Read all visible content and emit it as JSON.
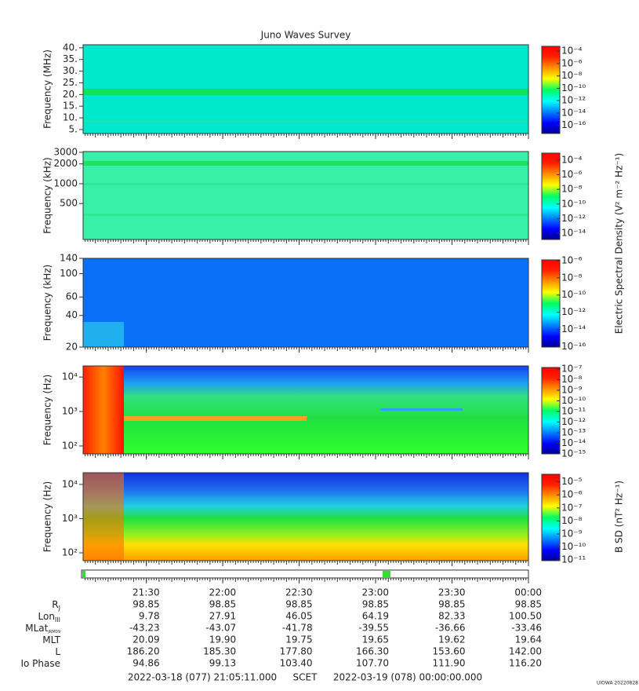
{
  "title": "Juno Waves Survey",
  "chart_data": [
    {
      "type": "spectrogram",
      "ylabel": "Frequency (MHz)",
      "log": false,
      "ylim": [
        3.3,
        41.3
      ],
      "yticks": [
        {
          "value": 5,
          "label": "5."
        },
        {
          "value": 10,
          "label": "10."
        },
        {
          "value": 15,
          "label": "15."
        },
        {
          "value": 20,
          "label": "20."
        },
        {
          "value": 25,
          "label": "25."
        },
        {
          "value": 30,
          "label": "30."
        },
        {
          "value": 35,
          "label": "35."
        },
        {
          "value": 40,
          "label": "40."
        }
      ],
      "clim": [
        5e-18,
        0.0006
      ],
      "cticks": [
        {
          "value": 0.0001,
          "label": "10⁻⁴"
        },
        {
          "value": 1e-06,
          "label": "10⁻⁶"
        },
        {
          "value": 1e-08,
          "label": "10⁻⁸"
        },
        {
          "value": 1e-10,
          "label": "10⁻¹⁰"
        },
        {
          "value": 1e-12,
          "label": "10⁻¹²"
        },
        {
          "value": 1e-14,
          "label": "10⁻¹⁴"
        },
        {
          "value": 1e-16,
          "label": "10⁻¹⁶"
        }
      ]
    },
    {
      "type": "spectrogram",
      "ylabel": "Frequency (kHz)",
      "log": true,
      "ylim": [
        142,
        3080
      ],
      "yticks": [
        500,
        1000,
        2000,
        3000
      ],
      "clim": [
        1.4e-15,
        0.0009
      ],
      "cticks": [
        {
          "value": 0.0001,
          "label": "10⁻⁴"
        },
        {
          "value": 1e-06,
          "label": "10⁻⁶"
        },
        {
          "value": 1e-08,
          "label": "10⁻⁸"
        },
        {
          "value": 1e-10,
          "label": "10⁻¹⁰"
        },
        {
          "value": 1e-12,
          "label": "10⁻¹²"
        },
        {
          "value": 1e-14,
          "label": "10⁻¹⁴"
        }
      ],
      "colorbar_label": "Electric Spectral Density (V² m⁻² Hz⁻¹)"
    },
    {
      "type": "spectrogram",
      "ylabel": "Frequency (kHz)",
      "log": true,
      "ylim": [
        20,
        140
      ],
      "yticks": [
        20,
        40,
        60,
        100,
        140
      ],
      "clim": [
        9e-17,
        1.2e-06
      ],
      "cticks": [
        {
          "value": 1e-06,
          "label": "10⁻⁶"
        },
        {
          "value": 1e-08,
          "label": "10⁻⁸"
        },
        {
          "value": 1e-10,
          "label": "10⁻¹⁰"
        },
        {
          "value": 1e-12,
          "label": "10⁻¹²"
        },
        {
          "value": 1e-14,
          "label": "10⁻¹⁴"
        },
        {
          "value": 1e-16,
          "label": "10⁻¹⁶"
        }
      ]
    },
    {
      "type": "spectrogram",
      "ylabel": "Frequency (Hz)",
      "log": true,
      "ylim": [
        59,
        21000
      ],
      "yticks": [
        {
          "value": 100,
          "label": "10²"
        },
        {
          "value": 1000,
          "label": "10³"
        },
        {
          "value": 10000,
          "label": "10⁴"
        }
      ],
      "clim": [
        1e-15,
        1.4e-07
      ],
      "cticks": [
        {
          "value": 1e-07,
          "label": "10⁻⁷"
        },
        {
          "value": 1e-08,
          "label": "10⁻⁸"
        },
        {
          "value": 1e-09,
          "label": "10⁻⁹"
        },
        {
          "value": 1e-10,
          "label": "10⁻¹⁰"
        },
        {
          "value": 1e-11,
          "label": "10⁻¹¹"
        },
        {
          "value": 1e-12,
          "label": "10⁻¹²"
        },
        {
          "value": 1e-13,
          "label": "10⁻¹³"
        },
        {
          "value": 1e-14,
          "label": "10⁻¹⁴"
        },
        {
          "value": 1e-15,
          "label": "10⁻¹⁵"
        }
      ]
    },
    {
      "type": "spectrogram",
      "ylabel": "Frequency (Hz)",
      "log": true,
      "ylim": [
        59,
        22000
      ],
      "yticks": [
        {
          "value": 100,
          "label": "10²"
        },
        {
          "value": 1000,
          "label": "10³"
        },
        {
          "value": 10000,
          "label": "10⁴"
        }
      ],
      "clim": [
        9e-12,
        3.8e-05
      ],
      "cticks": [
        {
          "value": 1e-05,
          "label": "10⁻⁵"
        },
        {
          "value": 1e-06,
          "label": "10⁻⁶"
        },
        {
          "value": 1e-07,
          "label": "10⁻⁷"
        },
        {
          "value": 1e-08,
          "label": "10⁻⁸"
        },
        {
          "value": 1e-09,
          "label": "10⁻⁹"
        },
        {
          "value": 1e-10,
          "label": "10⁻¹⁰"
        },
        {
          "value": 1e-11,
          "label": "10⁻¹¹"
        }
      ],
      "colorbar_label": "B SD (nT² Hz⁻¹)"
    }
  ],
  "time_axis": {
    "xlim": [
      1265.18,
      1440
    ],
    "xticks": [
      {
        "value": 1290,
        "label": "21:30"
      },
      {
        "value": 1320,
        "label": "22:00"
      },
      {
        "value": 1350,
        "label": "22:30"
      },
      {
        "value": 1380,
        "label": "23:00"
      },
      {
        "value": 1410,
        "label": "23:30"
      },
      {
        "value": 1440,
        "label": "00:00"
      }
    ]
  },
  "ephemeris": [
    {
      "label": "R",
      "sub": "J",
      "values": [
        "98.85",
        "98.85",
        "98.85",
        "98.85",
        "98.85",
        "98.85"
      ]
    },
    {
      "label": "Lon",
      "sub": "III",
      "values": [
        "9.78",
        "27.91",
        "46.05",
        "64.19",
        "82.33",
        "100.50"
      ]
    },
    {
      "label": "MLat",
      "sub": "JRM09",
      "values": [
        "-43.23",
        "-43.07",
        "-41.78",
        "-39.55",
        "-36.66",
        "-33.46"
      ]
    },
    {
      "label": "MLT",
      "values": [
        "20.09",
        "19.90",
        "19.75",
        "19.65",
        "19.62",
        "19.64"
      ]
    },
    {
      "label": "L",
      "values": [
        "186.20",
        "185.30",
        "177.80",
        "166.30",
        "153.60",
        "142.00"
      ]
    },
    {
      "label": "Io Phase",
      "values": [
        "94.86",
        "99.13",
        "103.40",
        "107.70",
        "111.90",
        "116.20"
      ]
    }
  ],
  "footer": {
    "start": "2022-03-18 (077) 21:05:11.000",
    "frame": "SCET",
    "end": "2022-03-19 (078) 00:00:00.000"
  },
  "credit": "UIOWA 20220828"
}
